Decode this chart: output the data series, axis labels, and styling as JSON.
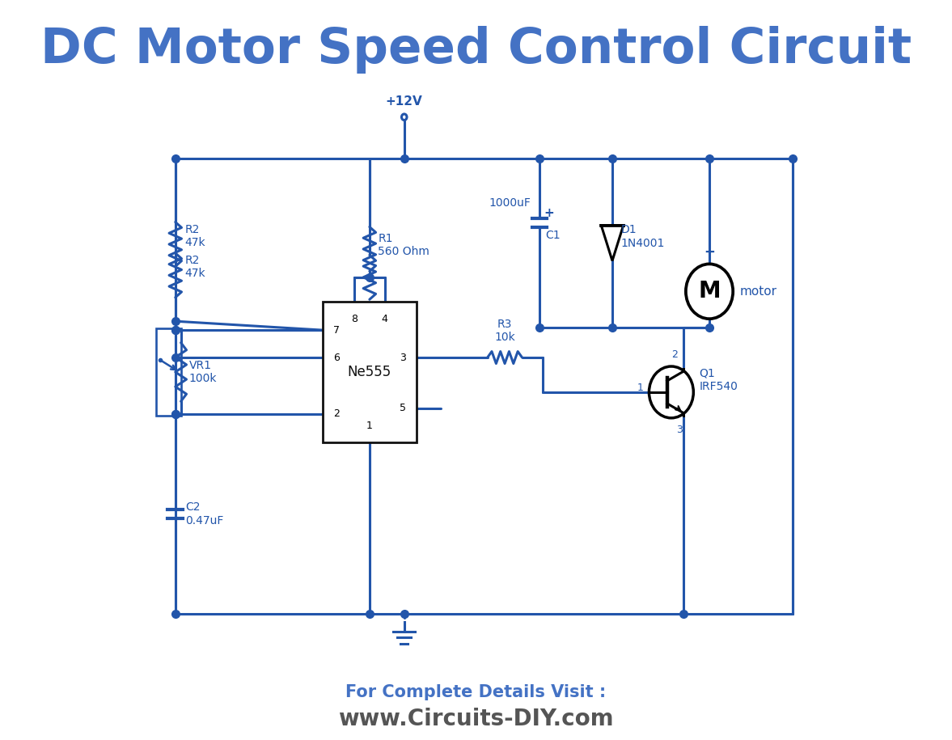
{
  "title": "DC Motor Speed Control Circuit",
  "title_color": "#4472C4",
  "title_fontsize": 44,
  "title_fontweight": "bold",
  "footer_line1": "For Complete Details Visit :",
  "footer_line2": "www.Circuits-DIY.com",
  "footer_color1": "#4472C4",
  "footer_color2": "#555555",
  "footer_fontsize1": 15,
  "footer_fontsize2": 20,
  "line_color": "#2255AA",
  "line_width": 2.2,
  "bg_color": "#FFFFFF",
  "component_color": "#2255AA",
  "ic_border_color": "#111111",
  "dot_size": 7
}
